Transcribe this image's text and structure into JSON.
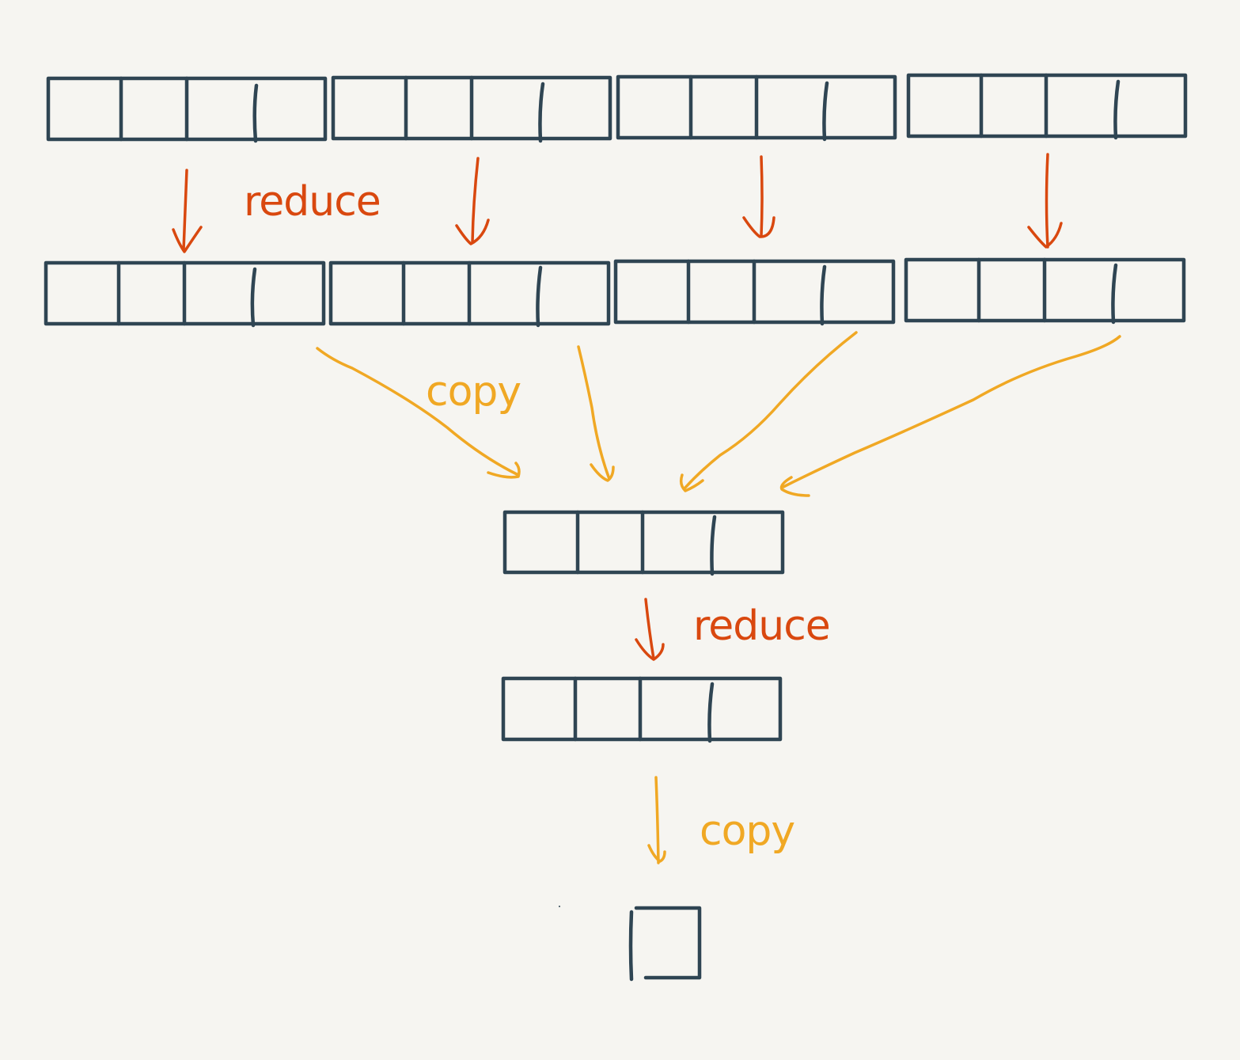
{
  "colors": {
    "background": "#f6f5f1",
    "cell_stroke": "#2f4553",
    "reduce": "#d9480f",
    "copy": "#f0a824"
  },
  "labels": {
    "reduce_1": "reduce",
    "copy_1": "copy",
    "reduce_2": "reduce",
    "copy_2": "copy"
  },
  "structure": {
    "level1_arrays": 4,
    "level2_arrays": 4,
    "cells_per_array": 4,
    "level3_arrays": 1,
    "level4_arrays": 1,
    "final_cells": 1
  }
}
